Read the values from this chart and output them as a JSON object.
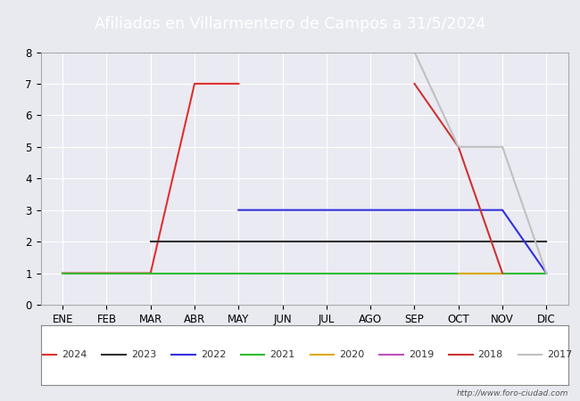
{
  "title": "Afiliados en Villarmentero de Campos a 31/5/2024",
  "months": [
    "ENE",
    "FEB",
    "MAR",
    "ABR",
    "MAY",
    "JUN",
    "JUL",
    "AGO",
    "SEP",
    "OCT",
    "NOV",
    "DIC"
  ],
  "ylim": [
    0.0,
    8.0
  ],
  "yticks": [
    0.0,
    1.0,
    2.0,
    3.0,
    4.0,
    5.0,
    6.0,
    7.0,
    8.0
  ],
  "series": {
    "2024": {
      "color": "#e03030",
      "data": [
        1,
        1,
        1,
        7,
        7,
        null,
        null,
        null,
        null,
        null,
        null,
        null
      ]
    },
    "2023": {
      "color": "#303030",
      "data": [
        null,
        null,
        2,
        2,
        2,
        2,
        2,
        2,
        2,
        2,
        2,
        2
      ]
    },
    "2022": {
      "color": "#3030dd",
      "data": [
        null,
        null,
        null,
        null,
        3,
        3,
        3,
        3,
        3,
        3,
        3,
        1
      ]
    },
    "2021": {
      "color": "#30bb30",
      "data": [
        1,
        1,
        1,
        1,
        1,
        1,
        1,
        1,
        1,
        1,
        1,
        1
      ]
    },
    "2020": {
      "color": "#ddaa00",
      "data": [
        null,
        null,
        null,
        null,
        null,
        null,
        null,
        null,
        null,
        1,
        1,
        null
      ]
    },
    "2019": {
      "color": "#bb50bb",
      "data": [
        null,
        null,
        null,
        null,
        null,
        null,
        null,
        null,
        null,
        null,
        null,
        null
      ]
    },
    "2018": {
      "color": "#cc3333",
      "data": [
        null,
        null,
        null,
        null,
        null,
        null,
        null,
        null,
        7,
        5,
        1,
        null
      ]
    },
    "2017": {
      "color": "#c0c0c0",
      "data": [
        null,
        null,
        null,
        null,
        null,
        null,
        8,
        8,
        8,
        5,
        5,
        1
      ]
    }
  },
  "legend_order": [
    "2024",
    "2023",
    "2022",
    "2021",
    "2020",
    "2019",
    "2018",
    "2017"
  ],
  "watermark": "http://www.foro-ciudad.com",
  "header_bg": "#5b9bd5",
  "fig_bg": "#e8eaf0",
  "plot_bg": "#eaeaf2"
}
